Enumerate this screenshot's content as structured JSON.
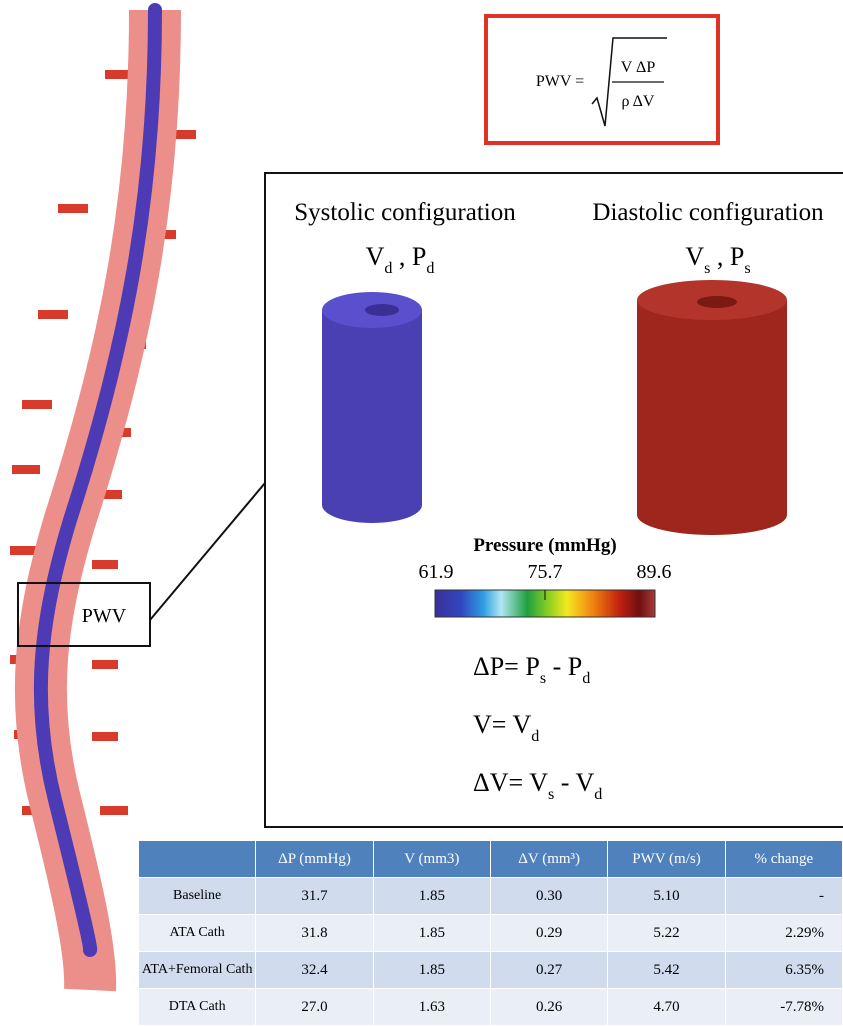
{
  "formula": {
    "lhs": "PWV =",
    "numerator": "V ΔP",
    "denominator": "ρ ΔV"
  },
  "vessel_box_label": "PWV",
  "panel": {
    "left_title": "Systolic configuration",
    "right_title": "Diastolic configuration",
    "left_label": [
      "V",
      "d",
      " , P",
      "d"
    ],
    "right_label": [
      "V",
      "s",
      " , P",
      "s"
    ],
    "colorbar": {
      "title": "Pressure (mmHg)",
      "ticks": [
        "61.9",
        "75.7",
        "89.6"
      ]
    },
    "equations": [
      [
        "ΔP= P",
        "s",
        " - P",
        "d"
      ],
      [
        "V= V",
        "d"
      ],
      [
        "ΔV= V",
        "s",
        " - V",
        "d"
      ]
    ]
  },
  "table": {
    "header": [
      "",
      "ΔP (mmHg)",
      "V (mm3)",
      "ΔV (mm³)",
      "PWV (m/s)",
      "% change"
    ],
    "rows": [
      [
        "Baseline",
        "31.7",
        "1.85",
        "0.30",
        "5.10",
        "-"
      ],
      [
        "ATA Cath",
        "31.8",
        "1.85",
        "0.29",
        "5.22",
        "2.29%"
      ],
      [
        "ATA+Femoral Cath",
        "32.4",
        "1.85",
        "0.27",
        "5.42",
        "6.35%"
      ],
      [
        "DTA Cath",
        "27.0",
        "1.63",
        "0.26",
        "4.70",
        "-7.78%"
      ]
    ]
  }
}
